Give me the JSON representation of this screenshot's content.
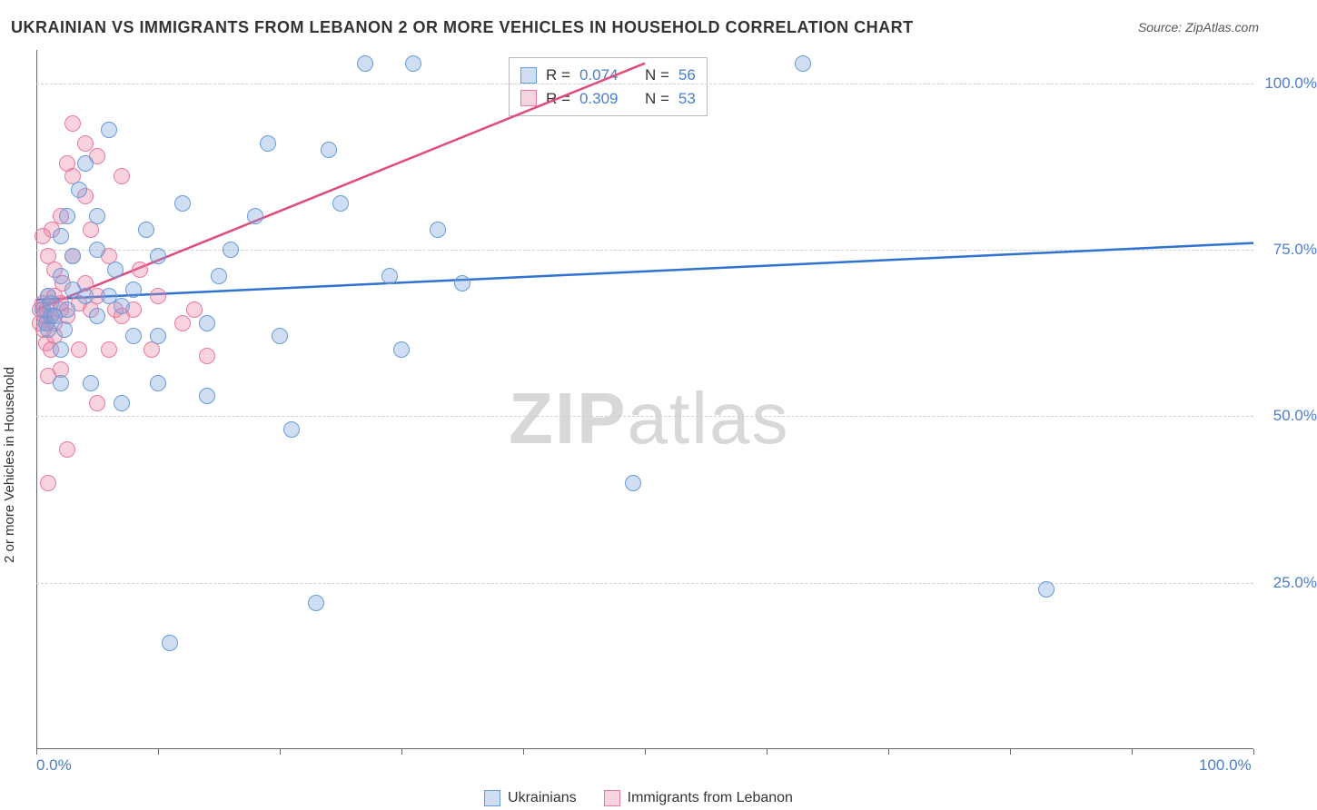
{
  "title": "UKRAINIAN VS IMMIGRANTS FROM LEBANON 2 OR MORE VEHICLES IN HOUSEHOLD CORRELATION CHART",
  "source": "Source: ZipAtlas.com",
  "y_axis_label": "2 or more Vehicles in Household",
  "watermark_a": "ZIP",
  "watermark_b": "atlas",
  "chart": {
    "type": "scatter",
    "xlim": [
      0,
      100
    ],
    "ylim": [
      0,
      105
    ],
    "x_ticks": [
      0,
      10,
      20,
      30,
      40,
      50,
      60,
      70,
      80,
      90,
      100
    ],
    "x_tick_labels": {
      "0": "0.0%",
      "100": "100.0%"
    },
    "y_ticks": [
      25,
      50,
      75,
      100
    ],
    "y_tick_labels": {
      "25": "25.0%",
      "50": "50.0%",
      "75": "75.0%",
      "100": "100.0%"
    },
    "grid_y": [
      25,
      50,
      75,
      100
    ],
    "background_color": "#ffffff",
    "grid_color": "#d0d0d0",
    "axis_color": "#666666",
    "tick_label_color": "#4a7ec9",
    "marker_size": 18,
    "series": [
      {
        "name": "Ukrainians",
        "fill": "rgba(120,160,220,0.35)",
        "stroke": "#6a9bd8",
        "R": "0.074",
        "N": "56",
        "trend": {
          "x1": 0,
          "y1": 67.5,
          "x2": 100,
          "y2": 76,
          "color": "#2f72d0",
          "width": 2.5
        },
        "points": [
          [
            0.5,
            66
          ],
          [
            0.8,
            64
          ],
          [
            1,
            68
          ],
          [
            1,
            63
          ],
          [
            1.2,
            67
          ],
          [
            1.2,
            65
          ],
          [
            1.5,
            65
          ],
          [
            2,
            71
          ],
          [
            2,
            77
          ],
          [
            2,
            60
          ],
          [
            2,
            55
          ],
          [
            2.3,
            63
          ],
          [
            2.5,
            66
          ],
          [
            2.5,
            80
          ],
          [
            3,
            74
          ],
          [
            3,
            69
          ],
          [
            3.5,
            84
          ],
          [
            4,
            88
          ],
          [
            4,
            68
          ],
          [
            4.5,
            55
          ],
          [
            5,
            75
          ],
          [
            5,
            80
          ],
          [
            5,
            65
          ],
          [
            6,
            93
          ],
          [
            6,
            68
          ],
          [
            6.5,
            72
          ],
          [
            7,
            52
          ],
          [
            7,
            66.5
          ],
          [
            8,
            69
          ],
          [
            8,
            62
          ],
          [
            9,
            78
          ],
          [
            10,
            74
          ],
          [
            10,
            62
          ],
          [
            10,
            55
          ],
          [
            11,
            16
          ],
          [
            12,
            82
          ],
          [
            14,
            53
          ],
          [
            14,
            64
          ],
          [
            15,
            71
          ],
          [
            16,
            75
          ],
          [
            18,
            80
          ],
          [
            19,
            91
          ],
          [
            20,
            62
          ],
          [
            21,
            48
          ],
          [
            23,
            22
          ],
          [
            24,
            90
          ],
          [
            25,
            82
          ],
          [
            27,
            103
          ],
          [
            29,
            71
          ],
          [
            30,
            60
          ],
          [
            31,
            103
          ],
          [
            33,
            78
          ],
          [
            35,
            70
          ],
          [
            49,
            40
          ],
          [
            63,
            103
          ],
          [
            83,
            24
          ]
        ]
      },
      {
        "name": "Immigrants from Lebanon",
        "fill": "rgba(235,130,160,0.35)",
        "stroke": "#e77aa0",
        "R": "0.309",
        "N": "53",
        "trend": {
          "x1": 0,
          "y1": 66,
          "x2": 50,
          "y2": 103,
          "color": "#e04a7d",
          "width": 2.5
        },
        "points": [
          [
            0.3,
            64
          ],
          [
            0.3,
            66
          ],
          [
            0.5,
            67
          ],
          [
            0.5,
            77
          ],
          [
            0.6,
            63
          ],
          [
            0.7,
            65
          ],
          [
            0.8,
            64
          ],
          [
            0.8,
            61
          ],
          [
            0.8,
            66
          ],
          [
            1,
            74
          ],
          [
            1,
            68
          ],
          [
            1,
            56
          ],
          [
            1,
            40
          ],
          [
            1.2,
            65
          ],
          [
            1.2,
            60
          ],
          [
            1.3,
            78
          ],
          [
            1.5,
            72
          ],
          [
            1.5,
            68
          ],
          [
            1.5,
            64
          ],
          [
            1.5,
            62
          ],
          [
            2,
            66
          ],
          [
            2,
            57
          ],
          [
            2,
            67
          ],
          [
            2,
            80
          ],
          [
            2.2,
            70
          ],
          [
            2.5,
            45
          ],
          [
            2.5,
            88
          ],
          [
            2.5,
            65
          ],
          [
            3,
            74
          ],
          [
            3,
            86
          ],
          [
            3,
            94
          ],
          [
            3.5,
            60
          ],
          [
            3.5,
            67
          ],
          [
            4,
            83
          ],
          [
            4,
            91
          ],
          [
            4,
            70
          ],
          [
            4.5,
            66
          ],
          [
            4.5,
            78
          ],
          [
            5,
            89
          ],
          [
            5,
            68
          ],
          [
            5,
            52
          ],
          [
            6,
            60
          ],
          [
            6,
            74
          ],
          [
            6.5,
            66
          ],
          [
            7,
            86
          ],
          [
            7,
            65
          ],
          [
            8,
            66
          ],
          [
            8.5,
            72
          ],
          [
            9.5,
            60
          ],
          [
            10,
            68
          ],
          [
            12,
            64
          ],
          [
            13,
            66
          ],
          [
            14,
            59
          ]
        ]
      }
    ]
  },
  "stats_box": {
    "label_R": "R =",
    "label_N": "N ="
  },
  "legend": {
    "s1": "Ukrainians",
    "s2": "Immigrants from Lebanon"
  }
}
